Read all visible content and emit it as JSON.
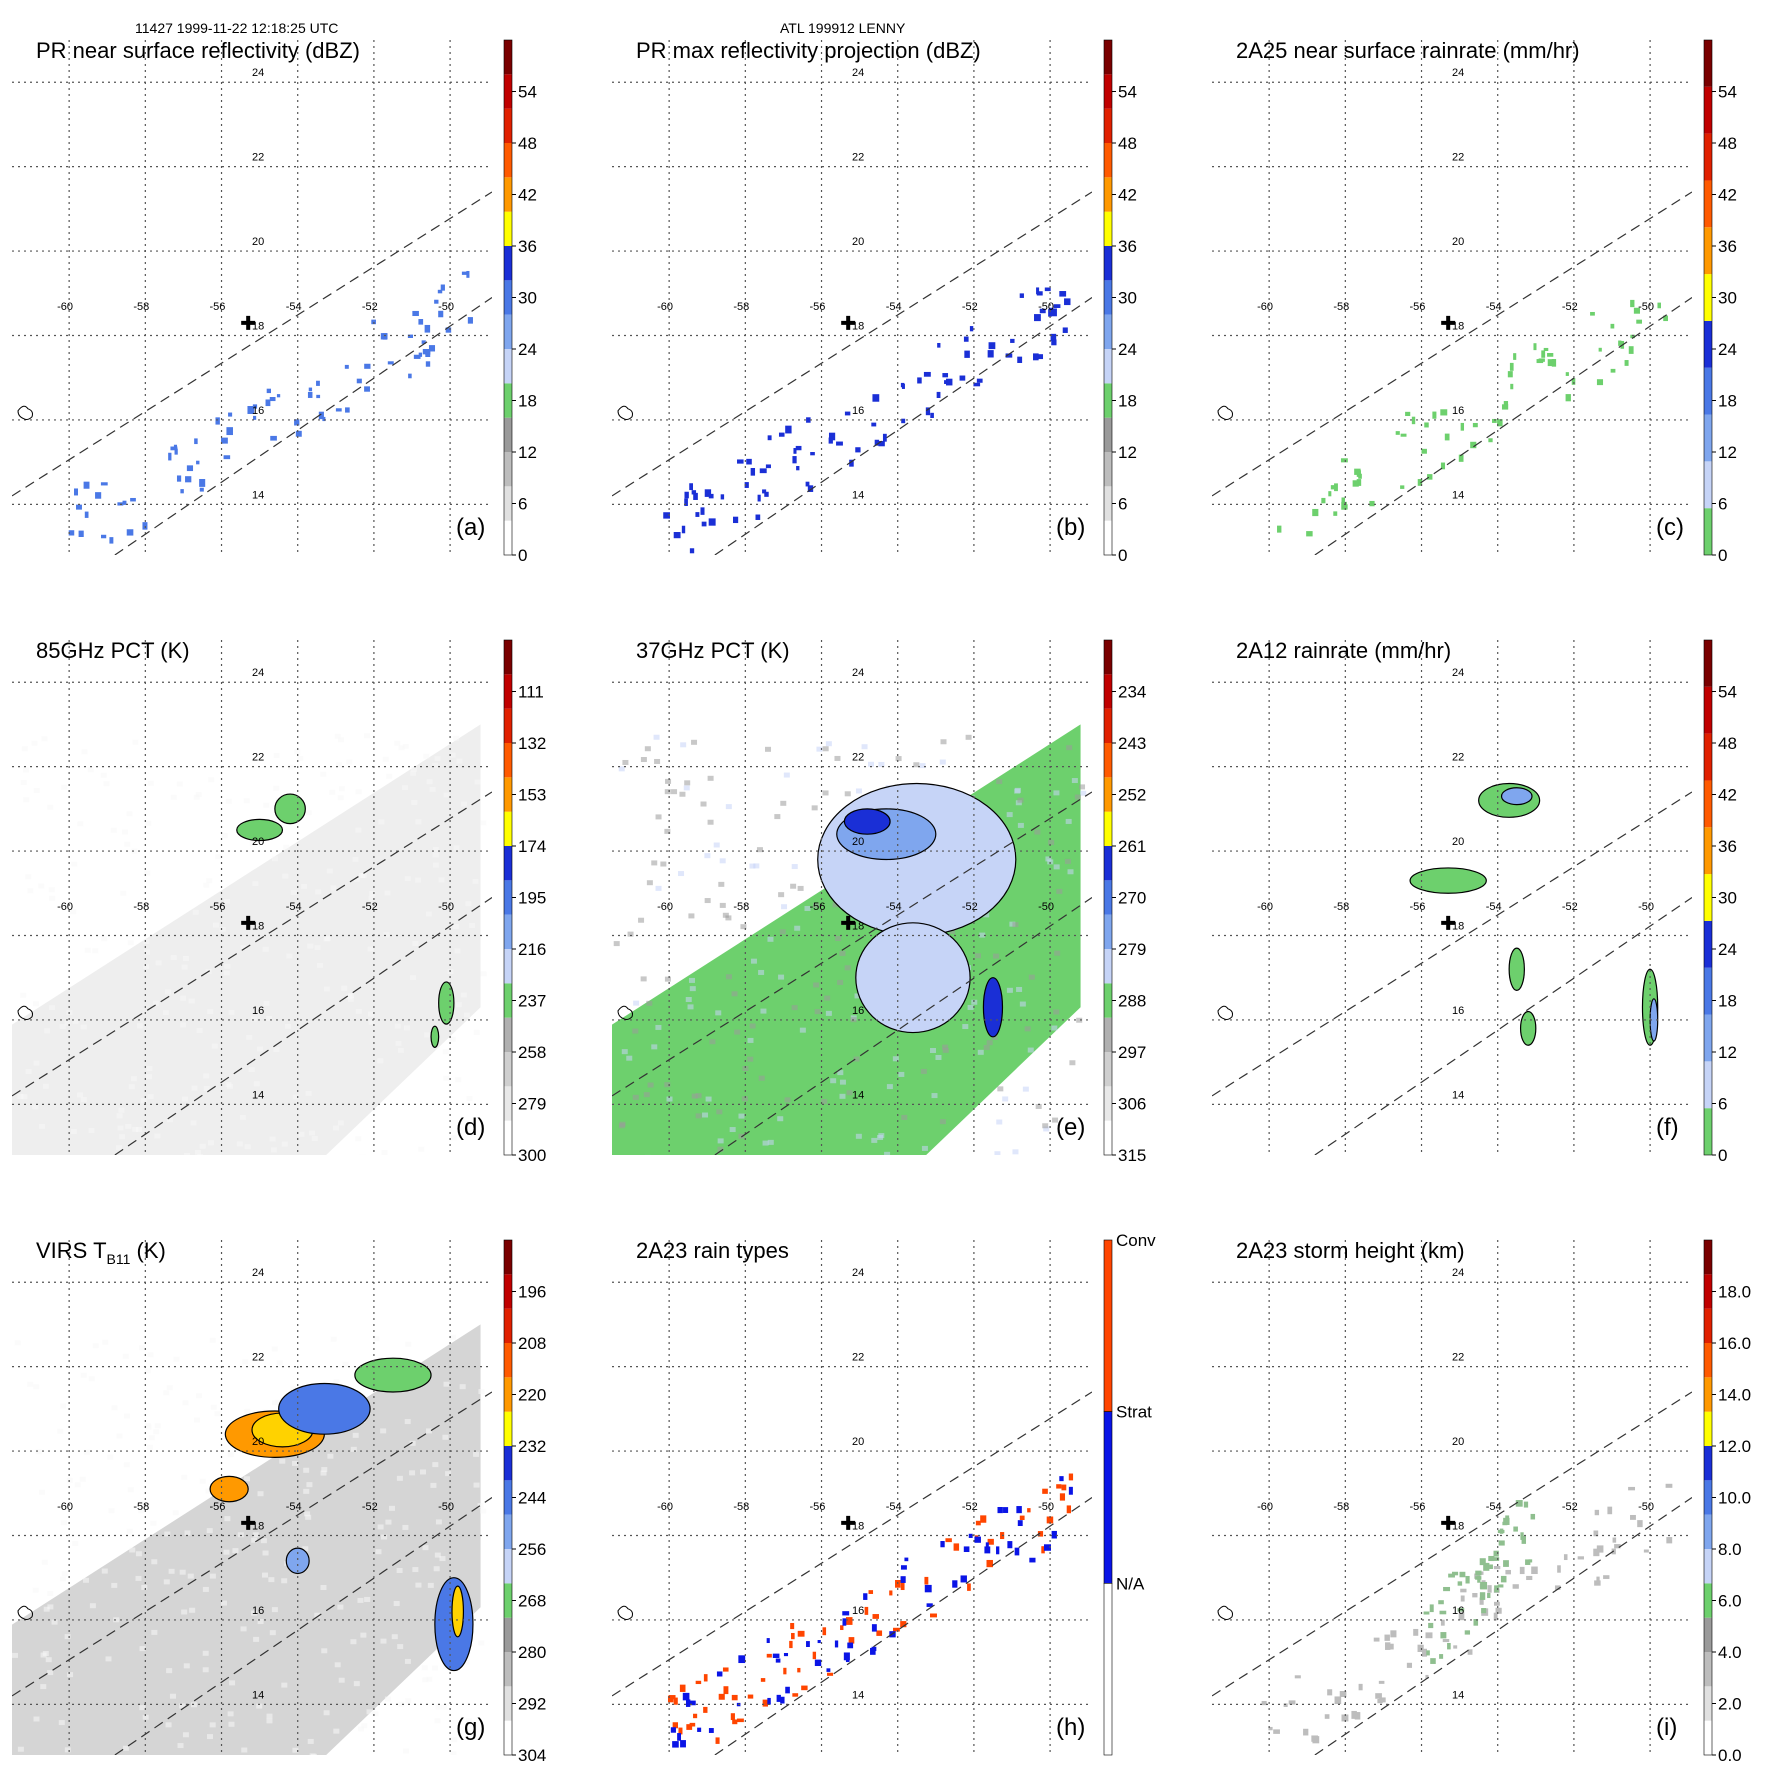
{
  "header": {
    "orbit_info": "11427 1999-11-22 12:18:25 UTC",
    "storm_info": "ATL 199912 LENNY"
  },
  "colors": {
    "grid": "#555555",
    "swath": "#333333",
    "pct_green": "#6dd06d",
    "pct_blue_light": "#c6d4f7",
    "pct_blue": "#5b8be8",
    "pct_blue_dark": "#1a2fd6",
    "rain_conv": "#ff4500",
    "rain_strat": "#0a14e6"
  },
  "map": {
    "lon_labels": [
      "-60",
      "-58",
      "-56",
      "-54",
      "-52",
      "-50"
    ],
    "lat_labels": [
      "24",
      "22",
      "20",
      "18",
      "16",
      "14"
    ],
    "storm_center": {
      "lon": -55.3,
      "lat": 18.3
    }
  },
  "chart_data": [
    {
      "type": "heatmap",
      "panel_label": "(a)",
      "title": "PR near surface reflectivity (dBZ)",
      "colorbar": {
        "kind": "continuous",
        "ticks": [
          "0",
          "6",
          "12",
          "18",
          "24",
          "30",
          "36",
          "42",
          "48",
          "54"
        ],
        "colors": [
          "#ffffff",
          "#e0e0e0",
          "#bdbdbd",
          "#9a9a9a",
          "#6dd06d",
          "#c6d4f7",
          "#7fa6ee",
          "#4a78e6",
          "#1a2fd6",
          "#ffff00",
          "#ff9900",
          "#ff5a00",
          "#e02000",
          "#c00000",
          "#7a0000"
        ]
      },
      "background": "none",
      "features": [
        {
          "kind": "band",
          "lon": [
            -60.2,
            -49.5
          ],
          "lat": [
            13.4,
            18.8
          ],
          "fill": "#4a78e6",
          "density": 0.08
        }
      ]
    },
    {
      "type": "heatmap",
      "panel_label": "(b)",
      "title": "PR max reflectivity projection (dBZ)",
      "colorbar": {
        "kind": "continuous",
        "ticks": [
          "0",
          "6",
          "12",
          "18",
          "24",
          "30",
          "36",
          "42",
          "48",
          "54"
        ],
        "colors": [
          "#ffffff",
          "#e0e0e0",
          "#bdbdbd",
          "#9a9a9a",
          "#6dd06d",
          "#c6d4f7",
          "#7fa6ee",
          "#4a78e6",
          "#1a2fd6",
          "#ffff00",
          "#ff9900",
          "#ff5a00",
          "#e02000",
          "#c00000",
          "#7a0000"
        ]
      },
      "background": "none",
      "features": [
        {
          "kind": "band",
          "lon": [
            -60.2,
            -49.5
          ],
          "lat": [
            13.4,
            18.8
          ],
          "fill": "#1a2fd6",
          "density": 0.09
        }
      ]
    },
    {
      "type": "heatmap",
      "panel_label": "(c)",
      "title": "2A25 near surface rainrate (mm/hr)",
      "colorbar": {
        "kind": "continuous",
        "ticks": [
          "0",
          "6",
          "12",
          "18",
          "24",
          "30",
          "36",
          "42",
          "48",
          "54"
        ],
        "colors": [
          "#6dd06d",
          "#c6d4f7",
          "#7fa6ee",
          "#4a78e6",
          "#1a2fd6",
          "#ffff00",
          "#ff9900",
          "#ff5a00",
          "#e02000",
          "#c00000",
          "#7a0000"
        ]
      },
      "background": "none",
      "features": [
        {
          "kind": "band",
          "lon": [
            -60.2,
            -49.5
          ],
          "lat": [
            13.4,
            18.8
          ],
          "fill": "#6dd06d",
          "density": 0.07
        }
      ]
    },
    {
      "type": "heatmap",
      "panel_label": "(d)",
      "title": "85GHz PCT (K)",
      "colorbar": {
        "kind": "continuous",
        "ticks": [
          "111",
          "132",
          "153",
          "174",
          "195",
          "216",
          "237",
          "258",
          "279",
          "300"
        ],
        "reverse": true,
        "colors": [
          "#ffffff",
          "#e8e8e8",
          "#cfcfcf",
          "#b0b0b0",
          "#6dd06d",
          "#c6d4f7",
          "#7fa6ee",
          "#4a78e6",
          "#1a2fd6",
          "#ffff00",
          "#ff9900",
          "#ff5a00",
          "#e02000",
          "#c00000",
          "#7a0000"
        ]
      },
      "background": "#eeeeee",
      "features": [
        {
          "kind": "blob",
          "lon": -55.0,
          "lat": 20.5,
          "rx": 0.6,
          "ry": 0.25,
          "fill": "#6dd06d"
        },
        {
          "kind": "blob",
          "lon": -54.2,
          "lat": 21.0,
          "rx": 0.4,
          "ry": 0.35,
          "fill": "#6dd06d"
        },
        {
          "kind": "blob",
          "lon": -50.1,
          "lat": 16.4,
          "rx": 0.2,
          "ry": 0.5,
          "fill": "#6dd06d"
        },
        {
          "kind": "blob",
          "lon": -50.4,
          "lat": 15.6,
          "rx": 0.1,
          "ry": 0.25,
          "fill": "#6dd06d"
        }
      ]
    },
    {
      "type": "heatmap",
      "panel_label": "(e)",
      "title": "37GHz PCT (K)",
      "colorbar": {
        "kind": "continuous",
        "ticks": [
          "234",
          "243",
          "252",
          "261",
          "270",
          "279",
          "288",
          "297",
          "306",
          "315"
        ],
        "reverse": true,
        "colors": [
          "#ffffff",
          "#e8e8e8",
          "#cfcfcf",
          "#b0b0b0",
          "#6dd06d",
          "#c6d4f7",
          "#7fa6ee",
          "#4a78e6",
          "#1a2fd6",
          "#ffff00",
          "#ff9900",
          "#ff5a00",
          "#e02000",
          "#c00000",
          "#7a0000"
        ]
      },
      "background": "#6dd06d",
      "features": [
        {
          "kind": "blob",
          "lon": -53.5,
          "lat": 19.8,
          "rx": 2.6,
          "ry": 1.8,
          "fill": "#c6d4f7"
        },
        {
          "kind": "blob",
          "lon": -54.3,
          "lat": 20.4,
          "rx": 1.3,
          "ry": 0.6,
          "fill": "#7fa6ee"
        },
        {
          "kind": "blob",
          "lon": -54.8,
          "lat": 20.7,
          "rx": 0.6,
          "ry": 0.3,
          "fill": "#1a2fd6"
        },
        {
          "kind": "blob",
          "lon": -51.5,
          "lat": 16.3,
          "rx": 0.25,
          "ry": 0.7,
          "fill": "#1a2fd6"
        },
        {
          "kind": "blob",
          "lon": -53.6,
          "lat": 17.0,
          "rx": 1.5,
          "ry": 1.3,
          "fill": "#c6d4f7"
        }
      ]
    },
    {
      "type": "heatmap",
      "panel_label": "(f)",
      "title": "2A12 rainrate (mm/hr)",
      "colorbar": {
        "kind": "continuous",
        "ticks": [
          "0",
          "6",
          "12",
          "18",
          "24",
          "30",
          "36",
          "42",
          "48",
          "54"
        ],
        "colors": [
          "#6dd06d",
          "#c6d4f7",
          "#7fa6ee",
          "#4a78e6",
          "#1a2fd6",
          "#ffff00",
          "#ff9900",
          "#ff5a00",
          "#e02000",
          "#c00000",
          "#7a0000"
        ]
      },
      "background": "none",
      "features": [
        {
          "kind": "blob",
          "lon": -53.7,
          "lat": 21.2,
          "rx": 0.8,
          "ry": 0.4,
          "fill": "#6dd06d"
        },
        {
          "kind": "blob",
          "lon": -53.5,
          "lat": 21.3,
          "rx": 0.4,
          "ry": 0.2,
          "fill": "#7fa6ee"
        },
        {
          "kind": "blob",
          "lon": -55.3,
          "lat": 19.3,
          "rx": 1.0,
          "ry": 0.3,
          "fill": "#6dd06d"
        },
        {
          "kind": "blob",
          "lon": -50.0,
          "lat": 16.3,
          "rx": 0.2,
          "ry": 0.9,
          "fill": "#6dd06d"
        },
        {
          "kind": "blob",
          "lon": -49.9,
          "lat": 16.0,
          "rx": 0.1,
          "ry": 0.5,
          "fill": "#7fa6ee"
        },
        {
          "kind": "blob",
          "lon": -53.5,
          "lat": 17.2,
          "rx": 0.2,
          "ry": 0.5,
          "fill": "#6dd06d"
        },
        {
          "kind": "blob",
          "lon": -53.2,
          "lat": 15.8,
          "rx": 0.2,
          "ry": 0.4,
          "fill": "#6dd06d"
        }
      ]
    },
    {
      "type": "heatmap",
      "panel_label": "(g)",
      "title": "VIRS T",
      "title_sub": "B11",
      "title_suffix": " (K)",
      "colorbar": {
        "kind": "continuous",
        "ticks": [
          "196",
          "208",
          "220",
          "232",
          "244",
          "256",
          "268",
          "280",
          "292",
          "304"
        ],
        "reverse": true,
        "colors": [
          "#ffffff",
          "#e0e0e0",
          "#bdbdbd",
          "#9a9a9a",
          "#6dd06d",
          "#c6d4f7",
          "#7fa6ee",
          "#4a78e6",
          "#1a2fd6",
          "#ffff00",
          "#ff9900",
          "#ff5a00",
          "#e02000",
          "#c00000",
          "#7a0000"
        ]
      },
      "background": "#d5d5d5",
      "features": [
        {
          "kind": "blob",
          "lon": -54.6,
          "lat": 20.4,
          "rx": 1.3,
          "ry": 0.55,
          "fill": "#ff9900"
        },
        {
          "kind": "blob",
          "lon": -54.4,
          "lat": 20.5,
          "rx": 0.8,
          "ry": 0.4,
          "fill": "#ffd200"
        },
        {
          "kind": "blob",
          "lon": -53.3,
          "lat": 21.0,
          "rx": 1.2,
          "ry": 0.6,
          "fill": "#4a78e6"
        },
        {
          "kind": "blob",
          "lon": -51.5,
          "lat": 21.8,
          "rx": 1.0,
          "ry": 0.4,
          "fill": "#6dd06d"
        },
        {
          "kind": "blob",
          "lon": -55.8,
          "lat": 19.1,
          "rx": 0.5,
          "ry": 0.3,
          "fill": "#ff9900"
        },
        {
          "kind": "blob",
          "lon": -49.9,
          "lat": 15.9,
          "rx": 0.5,
          "ry": 1.1,
          "fill": "#4a78e6"
        },
        {
          "kind": "blob",
          "lon": -49.8,
          "lat": 16.2,
          "rx": 0.15,
          "ry": 0.6,
          "fill": "#ffd200"
        },
        {
          "kind": "blob",
          "lon": -54.0,
          "lat": 17.4,
          "rx": 0.3,
          "ry": 0.3,
          "fill": "#7fa6ee"
        }
      ]
    },
    {
      "type": "heatmap",
      "panel_label": "(h)",
      "title": "2A23 rain types",
      "colorbar": {
        "kind": "category",
        "ticks": [
          "Conv",
          "Strat",
          "N/A"
        ],
        "colors": [
          "#ff4500",
          "#0a14e6",
          "#ffffff"
        ]
      },
      "background": "none",
      "features": [
        {
          "kind": "band",
          "lon": [
            -60.2,
            -49.5
          ],
          "lat": [
            13.4,
            18.8
          ],
          "fill": "#ff4500",
          "density": 0.07
        },
        {
          "kind": "band",
          "lon": [
            -60.2,
            -49.5
          ],
          "lat": [
            13.4,
            18.8
          ],
          "fill": "#0a14e6",
          "density": 0.06
        }
      ]
    },
    {
      "type": "heatmap",
      "panel_label": "(i)",
      "title": "2A23 storm height (km)",
      "colorbar": {
        "kind": "continuous",
        "ticks": [
          "0.0",
          "2.0",
          "4.0",
          "6.0",
          "8.0",
          "10.0",
          "12.0",
          "14.0",
          "16.0",
          "18.0"
        ],
        "colors": [
          "#ffffff",
          "#e0e0e0",
          "#bdbdbd",
          "#9a9a9a",
          "#6dd06d",
          "#c6d4f7",
          "#7fa6ee",
          "#4a78e6",
          "#1a2fd6",
          "#ffff00",
          "#ff9900",
          "#ff5a00",
          "#e02000",
          "#c00000",
          "#7a0000"
        ]
      },
      "background": "none",
      "features": [
        {
          "kind": "band",
          "lon": [
            -60.2,
            -49.5
          ],
          "lat": [
            13.4,
            18.8
          ],
          "fill": "#bdbdbd",
          "density": 0.08
        },
        {
          "kind": "band",
          "lon": [
            -56,
            -53
          ],
          "lat": [
            15.5,
            18.5
          ],
          "fill": "#8fbf8f",
          "density": 0.05
        }
      ]
    }
  ]
}
